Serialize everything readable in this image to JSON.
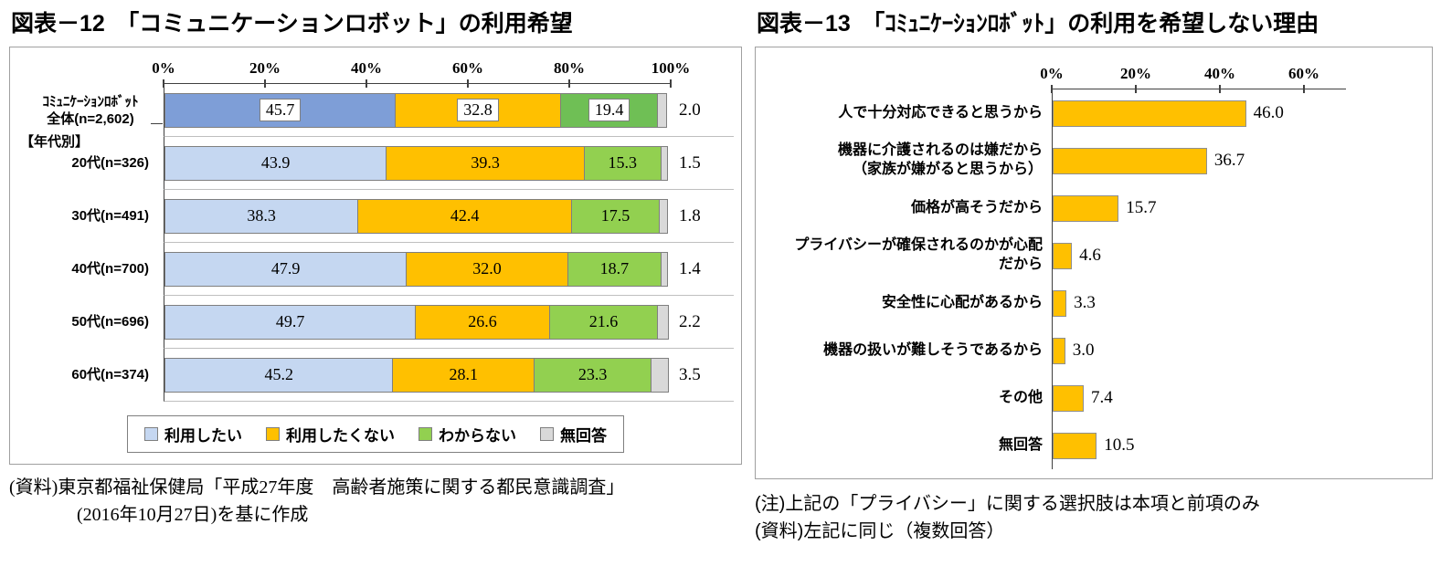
{
  "figure12": {
    "title": "図表－12　「コミュニケーションロボット」の利用希望",
    "group_header": "【年代別】",
    "source_line1": "(資料)東京都福祉保健局「平成27年度　高齢者施策に関する都民意識調査」",
    "source_line2": "(2016年10月27日)を基に作成"
  },
  "figure13": {
    "title": "図表－13　「ｺﾐｭﾆｹｰｼｮﾝﾛﾎﾞｯﾄ」の利用を希望しない理由",
    "note_line1": "(注)上記の「プライバシー」に関する選択肢は本項と前項のみ",
    "note_line2": "(資料)左記に同じ（複数回答）"
  },
  "colors": {
    "axis": "#404040",
    "bar_border": "#7f7f7f",
    "total_blue": "#7E9ED7",
    "total_green": "#6FBF55",
    "age_blue": "#C5D7F1",
    "age_green": "#92D050",
    "orange": "#FFC000",
    "gray": "#D9D9D9"
  },
  "chart_data": [
    {
      "id": "fig12",
      "type": "bar",
      "orientation": "horizontal",
      "stacked": true,
      "title": "図表－12　「コミュニケーションロボット」の利用希望",
      "categories": [
        "ｺﾐｭﾆｹｰｼｮﾝﾛﾎﾞｯﾄ\n全体(n=2,602)",
        "20代(n=326)",
        "30代(n=491)",
        "40代(n=700)",
        "50代(n=696)",
        "60代(n=374)"
      ],
      "series": [
        {
          "name": "利用したい",
          "values": [
            45.7,
            43.9,
            38.3,
            47.9,
            49.7,
            45.2
          ],
          "color": "#C5D7F1",
          "color_total": "#7E9ED7"
        },
        {
          "name": "利用したくない",
          "values": [
            32.8,
            39.3,
            42.4,
            32.0,
            26.6,
            28.1
          ],
          "color": "#FFC000",
          "color_total": "#FFC000"
        },
        {
          "name": "わからない",
          "values": [
            19.4,
            15.3,
            17.5,
            18.7,
            21.6,
            23.3
          ],
          "color": "#92D050",
          "color_total": "#6FBF55"
        },
        {
          "name": "無回答",
          "values": [
            2.0,
            1.5,
            1.8,
            1.4,
            2.2,
            3.5
          ],
          "color": "#D9D9D9",
          "color_total": "#D9D9D9"
        }
      ],
      "xlim": [
        0,
        100
      ],
      "x_tick_values": [
        0,
        20,
        40,
        60,
        80,
        100
      ],
      "x_tick_labels": [
        "0%",
        "20%",
        "40%",
        "60%",
        "80%",
        "100%"
      ],
      "legend_position": "bottom",
      "grid": false
    },
    {
      "id": "fig13",
      "type": "bar",
      "orientation": "horizontal",
      "stacked": false,
      "title": "図表－13　「ｺﾐｭﾆｹｰｼｮﾝﾛﾎﾞｯﾄ」の利用を希望しない理由",
      "categories": [
        "人で十分対応できると思うから",
        "機器に介護されるのは嫌だから\n（家族が嫌がると思うから）",
        "価格が高そうだから",
        "プライバシーが確保されるのかが心配\nだから",
        "安全性に心配があるから",
        "機器の扱いが難しそうであるから",
        "その他",
        "無回答"
      ],
      "values": [
        46.0,
        36.7,
        15.7,
        4.6,
        3.3,
        3.0,
        7.4,
        10.5
      ],
      "bar_color": "#FFC000",
      "xlim": [
        0,
        70
      ],
      "x_tick_values": [
        0,
        20,
        40,
        60
      ],
      "x_tick_labels": [
        "0%",
        "20%",
        "40%",
        "60%"
      ],
      "legend_position": "none",
      "grid": false
    }
  ]
}
